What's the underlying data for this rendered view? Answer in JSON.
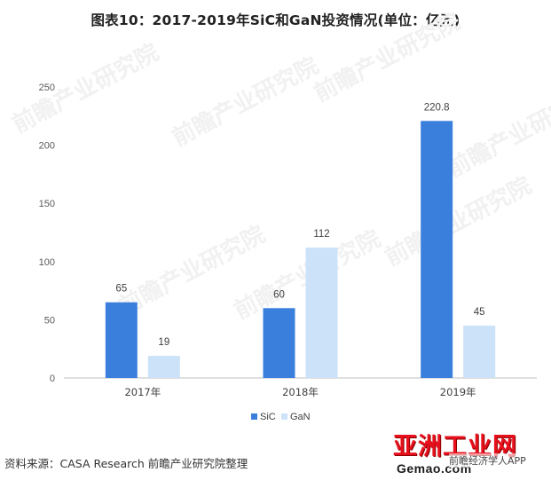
{
  "title": "图表10：2017-2019年SiC和GaN投资情况(单位：亿元)",
  "source": "资料来源：CASA Research 前瞻产业研究院整理",
  "watermark": "前瞻产业研究院",
  "logo": {
    "name": "亚洲工业网",
    "url": "Gemao.com",
    "app": "前瞻经济学人APP"
  },
  "chart_data": {
    "type": "bar",
    "title": "图表10：2017-2019年SiC和GaN投资情况(单位：亿元)",
    "categories": [
      "2017年",
      "2018年",
      "2019年"
    ],
    "series": [
      {
        "name": "SiC",
        "values": [
          65,
          60,
          220.8
        ],
        "color": "#3b7fdc"
      },
      {
        "name": "GaN",
        "values": [
          19,
          112,
          45
        ],
        "color": "#cce2f8"
      }
    ],
    "data_labels": [
      [
        "65",
        "60",
        "220.8"
      ],
      [
        "19",
        "112",
        "45"
      ]
    ],
    "yticks": [
      "0",
      "50",
      "100",
      "150",
      "200",
      "250"
    ],
    "ylim": [
      0,
      250
    ],
    "grid": false,
    "legend": "bottom-center",
    "xlabel": "",
    "ylabel": ""
  }
}
